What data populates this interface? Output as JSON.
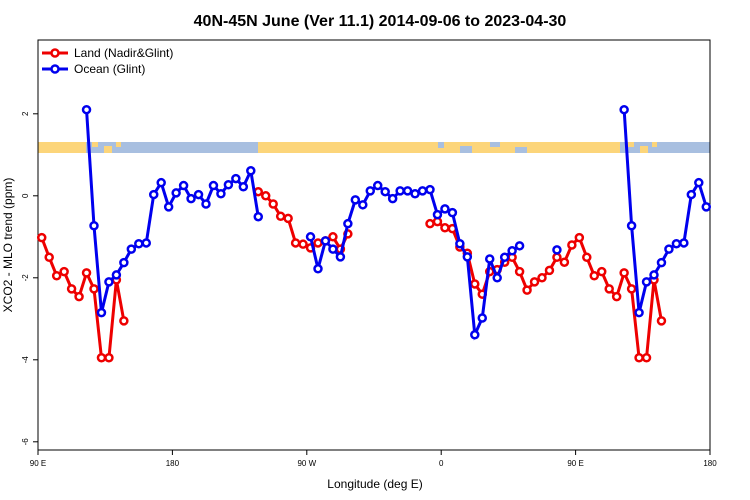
{
  "chart_data": {
    "type": "line",
    "title": "40N-45N June (Ver 11.1)   2014-09-06 to 2023-04-30",
    "x_label": "Longitude (deg E)",
    "y_label": "XCO2 - MLO trend (ppm)",
    "xlim": [
      90,
      540
    ],
    "ylim": [
      -6.2,
      3.8
    ],
    "xticks": [
      {
        "value": 90,
        "label": "90 E"
      },
      180,
      {
        "value": 270,
        "label": "90 W"
      },
      {
        "value": 360,
        "label": "0"
      },
      {
        "value": 450,
        "label": "90 E"
      },
      {
        "value": 540,
        "label": "180"
      }
    ],
    "yticks": [
      -6,
      -4,
      -2,
      0,
      2
    ],
    "legend": "top-left",
    "series": [
      {
        "name": "Land (Nadir&Glint)",
        "color": "#ee0000",
        "x": [
          92.5,
          97.5,
          102.5,
          107.5,
          112.5,
          117.5,
          122.5,
          127.5,
          132.5,
          137.5,
          142.5,
          147.5,
          152.5,
          237.5,
          242.5,
          247.5,
          252.5,
          257.5,
          262.5,
          267.5,
          272.5,
          277.5,
          282.5,
          287.5,
          292.5,
          297.5,
          302.5,
          352.5,
          357.5,
          362.5,
          367.5,
          372.5,
          377.5,
          382.5,
          387.5,
          392.5,
          397.5,
          402.5,
          407.5,
          412.5,
          417.5,
          422.5,
          427.5,
          432.5,
          437.5,
          442.5,
          447.5,
          452.5,
          457.5,
          462.5,
          467.5,
          472.5,
          477.5,
          482.5,
          487.5,
          492.5,
          497.5,
          502.5,
          507.5
        ],
        "values": [
          -1.02,
          -1.5,
          -1.95,
          -1.85,
          -2.27,
          -2.46,
          -1.88,
          -2.27,
          -3.95,
          -3.95,
          -2.05,
          -3.05,
          null,
          0.1,
          0.0,
          -0.2,
          -0.5,
          -0.55,
          -1.15,
          -1.18,
          -1.27,
          -1.15,
          -1.1,
          -1.0,
          -1.3,
          -0.93,
          null,
          -0.68,
          -0.63,
          -0.78,
          -0.8,
          -1.25,
          -1.4,
          -2.15,
          -2.4,
          -1.85,
          -1.8,
          -1.62,
          -1.5,
          -1.85,
          -2.3,
          -2.1,
          -2.0,
          -1.82,
          -1.5,
          -1.62,
          -1.2,
          -1.02,
          -1.5,
          -1.95,
          -1.85,
          -2.27,
          -2.46,
          -1.88,
          -2.27,
          -3.95,
          -3.95,
          -2.05,
          -3.05
        ]
      },
      {
        "name": "Ocean (Glint)",
        "color": "#0000ee",
        "x": [
          122.5,
          127.5,
          132.5,
          137.5,
          142.5,
          147.5,
          152.5,
          157.5,
          162.5,
          167.5,
          172.5,
          177.5,
          182.5,
          187.5,
          192.5,
          197.5,
          202.5,
          207.5,
          212.5,
          217.5,
          222.5,
          227.5,
          232.5,
          237.5,
          242.5,
          272.5,
          277.5,
          282.5,
          287.5,
          292.5,
          297.5,
          302.5,
          307.5,
          312.5,
          317.5,
          322.5,
          327.5,
          332.5,
          337.5,
          342.5,
          347.5,
          352.5,
          357.5,
          362.5,
          367.5,
          372.5,
          377.5,
          382.5,
          387.5,
          392.5,
          397.5,
          402.5,
          407.5,
          412.5,
          417.5,
          437.5,
          442.5,
          482.5,
          487.5,
          492.5,
          497.5,
          502.5,
          507.5,
          512.5,
          517.5,
          522.5,
          527.5,
          532.5,
          537.5
        ],
        "values": [
          2.1,
          -0.73,
          -2.85,
          -2.1,
          -1.93,
          -1.63,
          -1.3,
          -1.17,
          -1.15,
          0.03,
          0.32,
          -0.27,
          0.07,
          0.25,
          -0.07,
          0.03,
          -0.2,
          0.25,
          0.05,
          0.27,
          0.42,
          0.22,
          0.61,
          -0.51,
          null,
          -1.0,
          -1.78,
          -1.1,
          -1.3,
          -1.49,
          -0.68,
          -0.1,
          -0.22,
          0.12,
          0.25,
          0.1,
          -0.07,
          0.12,
          0.12,
          0.05,
          0.12,
          0.15,
          -0.46,
          -0.32,
          -0.41,
          -1.17,
          -1.49,
          -3.39,
          -2.98,
          -1.54,
          -2.0,
          -1.5,
          -1.34,
          -1.22,
          null,
          -1.32,
          null,
          2.1,
          -0.73,
          -2.85,
          -2.1,
          -1.93,
          -1.63,
          -1.3,
          -1.17,
          -1.15,
          0.03,
          0.32,
          -0.27
        ]
      }
    ]
  }
}
